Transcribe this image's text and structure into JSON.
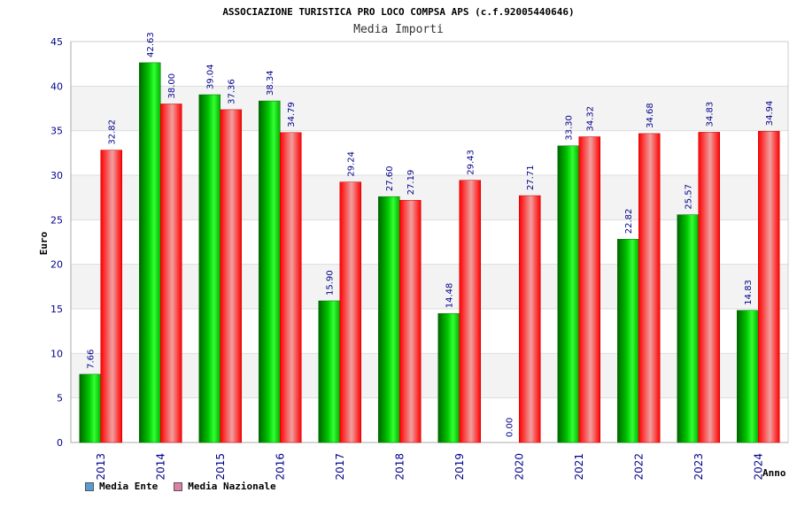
{
  "chart_data": {
    "type": "bar",
    "title": "ASSOCIAZIONE TURISTICA PRO LOCO COMPSA APS (c.f.92005440646)",
    "subtitle": "Media Importi",
    "xlabel": "Anno",
    "ylabel": "Euro",
    "ylim": [
      0,
      45
    ],
    "yticks": [
      "0",
      "5",
      "10",
      "15",
      "20",
      "25",
      "30",
      "35",
      "40",
      "45"
    ],
    "grid": "horizontal bands",
    "legend_position": "bottom-left",
    "categories": [
      "2013",
      "2014",
      "2015",
      "2016",
      "2017",
      "2018",
      "2019",
      "2020",
      "2021",
      "2022",
      "2023",
      "2024"
    ],
    "series": [
      {
        "name": "Media Ente",
        "color": "#00c000",
        "legend_color": "#5b9bd5",
        "values": [
          7.66,
          42.63,
          39.04,
          38.34,
          15.9,
          27.6,
          14.48,
          0.0,
          33.3,
          22.82,
          25.57,
          14.83
        ],
        "labels": [
          "7.66",
          "42.63",
          "39.04",
          "38.34",
          "15.90",
          "27.60",
          "14.48",
          "0.00",
          "33.30",
          "22.82",
          "25.57",
          "14.83"
        ]
      },
      {
        "name": "Media Nazionale",
        "color": "#ff0000",
        "legend_color": "#e07fa8",
        "values": [
          32.82,
          38.0,
          37.36,
          34.79,
          29.24,
          27.19,
          29.43,
          27.71,
          34.32,
          34.68,
          34.83,
          34.94
        ],
        "labels": [
          "32.82",
          "38.00",
          "37.36",
          "34.79",
          "29.24",
          "27.19",
          "29.43",
          "27.71",
          "34.32",
          "34.68",
          "34.83",
          "34.94"
        ]
      }
    ]
  }
}
